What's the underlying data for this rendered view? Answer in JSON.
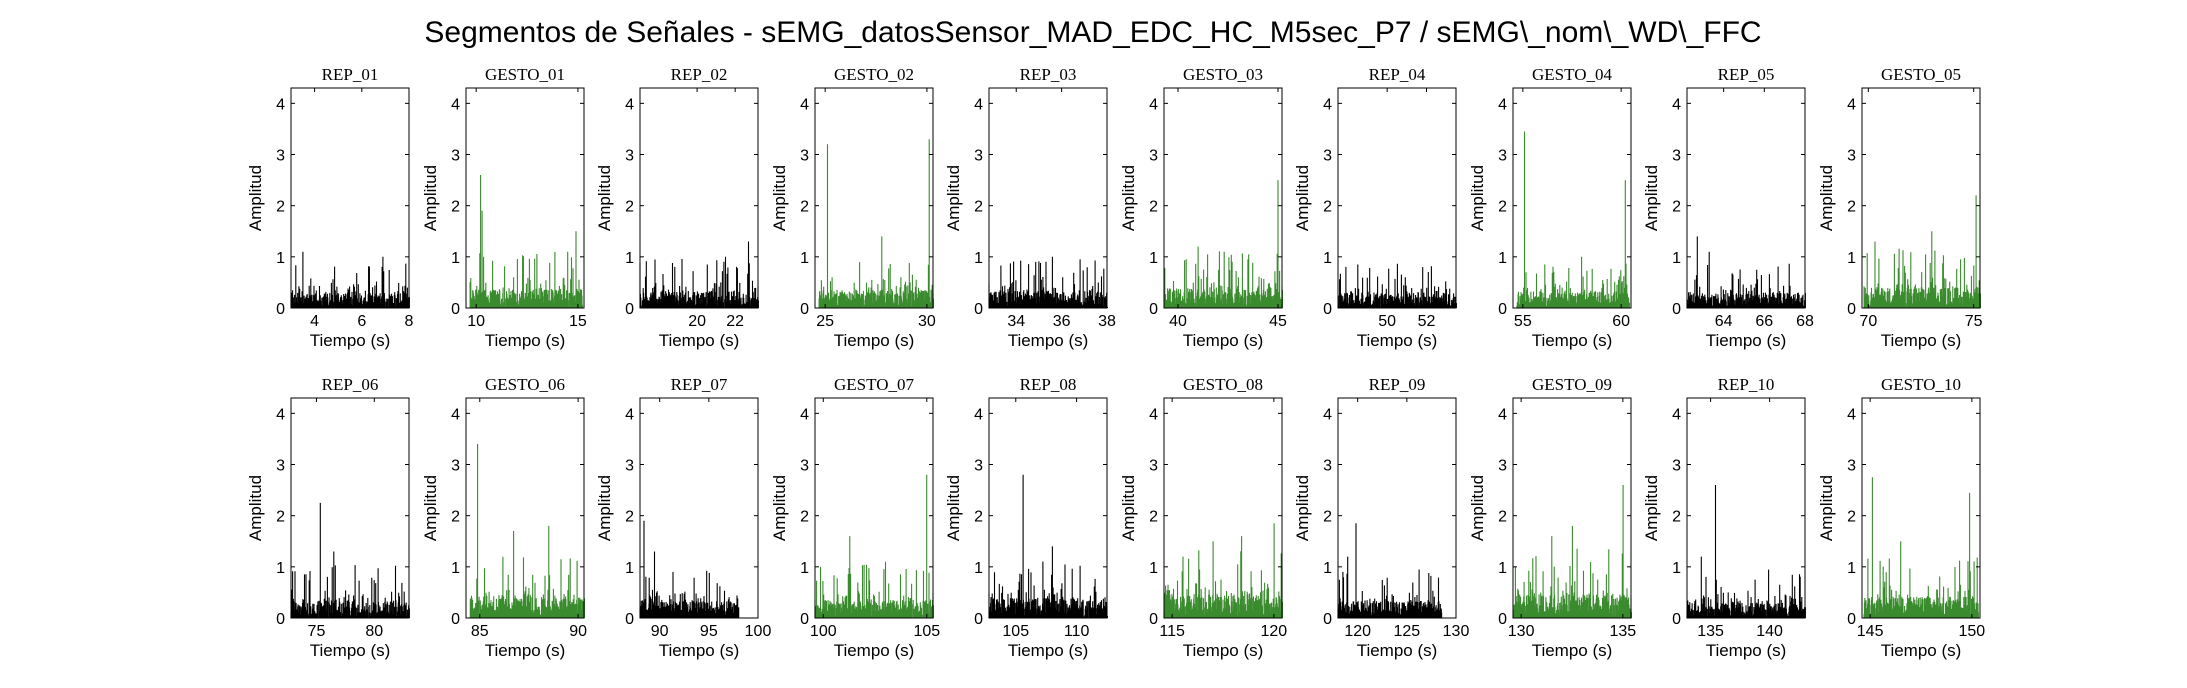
{
  "figure": {
    "title": "Segmentos de Señales - sEMG_datosSensor_MAD_EDC_HC_M5sec_P7 / sEMG\\_nom\\_WD\\_FFC",
    "colors": {
      "rep": "#000000",
      "gesto": "#3a8a2e",
      "axes": "#000000",
      "background": "#ffffff"
    }
  },
  "chart_data": [
    {
      "type": "line",
      "title": "REP_01",
      "xlabel": "Tiempo (s)",
      "ylabel": "Amplitud",
      "color": "#000000",
      "xlim": [
        3,
        8
      ],
      "ylim": [
        0,
        4.3
      ],
      "xticks": [
        4,
        6,
        8
      ],
      "yticks": [
        0,
        1,
        2,
        3,
        4
      ],
      "series": [
        {
          "x_start": 3.0,
          "x_end": 8.0,
          "peaks": [
            {
              "x": 3.5,
              "y": 1.1
            },
            {
              "x": 6.9,
              "y": 1.0
            }
          ],
          "typical_max": 0.55
        }
      ]
    },
    {
      "type": "line",
      "title": "GESTO_01",
      "xlabel": "Tiempo (s)",
      "ylabel": "Amplitud",
      "color": "#3a8a2e",
      "xlim": [
        9.5,
        15.3
      ],
      "ylim": [
        0,
        4.3
      ],
      "xticks": [
        10,
        15
      ],
      "yticks": [
        0,
        1,
        2,
        3,
        4
      ],
      "series": [
        {
          "x_start": 9.7,
          "x_end": 15.2,
          "peaks": [
            {
              "x": 10.2,
              "y": 2.6
            },
            {
              "x": 10.3,
              "y": 1.9
            },
            {
              "x": 14.9,
              "y": 1.5
            }
          ],
          "typical_max": 0.7
        }
      ]
    },
    {
      "type": "line",
      "title": "REP_02",
      "xlabel": "Tiempo (s)",
      "ylabel": "Amplitud",
      "color": "#000000",
      "xlim": [
        17,
        23.2
      ],
      "ylim": [
        0,
        4.3
      ],
      "xticks": [
        20,
        22
      ],
      "yticks": [
        0,
        1,
        2,
        3,
        4
      ],
      "series": [
        {
          "x_start": 17.0,
          "x_end": 23.2,
          "peaks": [
            {
              "x": 22.7,
              "y": 1.3
            },
            {
              "x": 21.5,
              "y": 1.0
            }
          ],
          "typical_max": 0.6
        }
      ]
    },
    {
      "type": "line",
      "title": "GESTO_02",
      "xlabel": "Tiempo (s)",
      "ylabel": "Amplitud",
      "color": "#3a8a2e",
      "xlim": [
        24.5,
        30.3
      ],
      "ylim": [
        0,
        4.3
      ],
      "xticks": [
        25,
        30
      ],
      "yticks": [
        0,
        1,
        2,
        3,
        4
      ],
      "series": [
        {
          "x_start": 24.7,
          "x_end": 30.3,
          "peaks": [
            {
              "x": 25.1,
              "y": 3.2
            },
            {
              "x": 30.1,
              "y": 3.3
            },
            {
              "x": 27.8,
              "y": 1.4
            }
          ],
          "typical_max": 0.65
        }
      ]
    },
    {
      "type": "line",
      "title": "REP_03",
      "xlabel": "Tiempo (s)",
      "ylabel": "Amplitud",
      "color": "#000000",
      "xlim": [
        32.8,
        38
      ],
      "ylim": [
        0,
        4.3
      ],
      "xticks": [
        34,
        36,
        38
      ],
      "yticks": [
        0,
        1,
        2,
        3,
        4
      ],
      "series": [
        {
          "x_start": 32.8,
          "x_end": 38.0,
          "peaks": [
            {
              "x": 35.6,
              "y": 1.0
            },
            {
              "x": 36.8,
              "y": 0.95
            }
          ],
          "typical_max": 0.6
        }
      ]
    },
    {
      "type": "line",
      "title": "GESTO_03",
      "xlabel": "Tiempo (s)",
      "ylabel": "Amplitud",
      "color": "#3a8a2e",
      "xlim": [
        39.3,
        45.2
      ],
      "ylim": [
        0,
        4.3
      ],
      "xticks": [
        40,
        45
      ],
      "yticks": [
        0,
        1,
        2,
        3,
        4
      ],
      "series": [
        {
          "x_start": 39.3,
          "x_end": 45.2,
          "peaks": [
            {
              "x": 45.0,
              "y": 2.5
            },
            {
              "x": 41.0,
              "y": 1.2
            }
          ],
          "typical_max": 0.7
        }
      ]
    },
    {
      "type": "line",
      "title": "REP_04",
      "xlabel": "Tiempo (s)",
      "ylabel": "Amplitud",
      "color": "#000000",
      "xlim": [
        47.5,
        53.5
      ],
      "ylim": [
        0,
        4.3
      ],
      "xticks": [
        50,
        52
      ],
      "yticks": [
        0,
        1,
        2,
        3,
        4
      ],
      "series": [
        {
          "x_start": 47.5,
          "x_end": 53.5,
          "peaks": [
            {
              "x": 48.5,
              "y": 0.85
            },
            {
              "x": 51.8,
              "y": 0.8
            }
          ],
          "typical_max": 0.55
        }
      ]
    },
    {
      "type": "line",
      "title": "GESTO_04",
      "xlabel": "Tiempo (s)",
      "ylabel": "Amplitud",
      "color": "#3a8a2e",
      "xlim": [
        54.5,
        60.5
      ],
      "ylim": [
        0,
        4.3
      ],
      "xticks": [
        55,
        60
      ],
      "yticks": [
        0,
        1,
        2,
        3,
        4
      ],
      "series": [
        {
          "x_start": 54.7,
          "x_end": 60.4,
          "peaks": [
            {
              "x": 55.1,
              "y": 3.45
            },
            {
              "x": 60.2,
              "y": 2.5
            },
            {
              "x": 58.0,
              "y": 1.0
            }
          ],
          "typical_max": 0.6
        }
      ]
    },
    {
      "type": "line",
      "title": "REP_05",
      "xlabel": "Tiempo (s)",
      "ylabel": "Amplitud",
      "color": "#000000",
      "xlim": [
        62.2,
        68
      ],
      "ylim": [
        0,
        4.3
      ],
      "xticks": [
        64,
        66,
        68
      ],
      "yticks": [
        0,
        1,
        2,
        3,
        4
      ],
      "series": [
        {
          "x_start": 62.2,
          "x_end": 68.0,
          "peaks": [
            {
              "x": 62.7,
              "y": 1.4
            },
            {
              "x": 63.3,
              "y": 1.1
            }
          ],
          "typical_max": 0.55
        }
      ]
    },
    {
      "type": "line",
      "title": "GESTO_05",
      "xlabel": "Tiempo (s)",
      "ylabel": "Amplitud",
      "color": "#3a8a2e",
      "xlim": [
        69.7,
        75.3
      ],
      "ylim": [
        0,
        4.3
      ],
      "xticks": [
        70,
        75
      ],
      "yticks": [
        0,
        1,
        2,
        3,
        4
      ],
      "series": [
        {
          "x_start": 69.8,
          "x_end": 75.3,
          "peaks": [
            {
              "x": 75.1,
              "y": 2.2
            },
            {
              "x": 73.0,
              "y": 1.5
            },
            {
              "x": 70.3,
              "y": 1.3
            }
          ],
          "typical_max": 0.75
        }
      ]
    },
    {
      "type": "line",
      "title": "REP_06",
      "xlabel": "Tiempo (s)",
      "ylabel": "Amplitud",
      "color": "#000000",
      "xlim": [
        72.8,
        83
      ],
      "ylim": [
        0,
        4.3
      ],
      "xticks": [
        75,
        80
      ],
      "yticks": [
        0,
        1,
        2,
        3,
        4
      ],
      "series": [
        {
          "x_start": 72.8,
          "x_end": 83.0,
          "peaks": [
            {
              "x": 75.3,
              "y": 2.25
            },
            {
              "x": 76.5,
              "y": 1.3
            }
          ],
          "typical_max": 0.65
        }
      ]
    },
    {
      "type": "line",
      "title": "GESTO_06",
      "xlabel": "Tiempo (s)",
      "ylabel": "Amplitud",
      "color": "#3a8a2e",
      "xlim": [
        84.3,
        90.3
      ],
      "ylim": [
        0,
        4.3
      ],
      "xticks": [
        85,
        90
      ],
      "yticks": [
        0,
        1,
        2,
        3,
        4
      ],
      "series": [
        {
          "x_start": 84.5,
          "x_end": 90.3,
          "peaks": [
            {
              "x": 84.9,
              "y": 3.4
            },
            {
              "x": 88.5,
              "y": 1.8
            },
            {
              "x": 86.7,
              "y": 1.7
            }
          ],
          "typical_max": 0.75
        }
      ]
    },
    {
      "type": "line",
      "title": "REP_07",
      "xlabel": "Tiempo (s)",
      "ylabel": "Amplitud",
      "color": "#000000",
      "xlim": [
        88,
        100
      ],
      "ylim": [
        0,
        4.3
      ],
      "xticks": [
        90,
        95,
        100
      ],
      "yticks": [
        0,
        1,
        2,
        3,
        4
      ],
      "series": [
        {
          "x_start": 88.0,
          "x_end": 98.0,
          "peaks": [
            {
              "x": 88.4,
              "y": 1.9
            },
            {
              "x": 89.5,
              "y": 1.3
            }
          ],
          "typical_max": 0.6
        }
      ]
    },
    {
      "type": "line",
      "title": "GESTO_07",
      "xlabel": "Tiempo (s)",
      "ylabel": "Amplitud",
      "color": "#3a8a2e",
      "xlim": [
        99.6,
        105.3
      ],
      "ylim": [
        0,
        4.3
      ],
      "xticks": [
        100,
        105
      ],
      "yticks": [
        0,
        1,
        2,
        3,
        4
      ],
      "series": [
        {
          "x_start": 99.6,
          "x_end": 105.3,
          "peaks": [
            {
              "x": 105.0,
              "y": 2.8
            },
            {
              "x": 101.3,
              "y": 1.6
            },
            {
              "x": 103.0,
              "y": 1.1
            }
          ],
          "typical_max": 0.65
        }
      ]
    },
    {
      "type": "line",
      "title": "REP_08",
      "xlabel": "Tiempo (s)",
      "ylabel": "Amplitud",
      "color": "#000000",
      "xlim": [
        102.8,
        112.5
      ],
      "ylim": [
        0,
        4.3
      ],
      "xticks": [
        105,
        110
      ],
      "yticks": [
        0,
        1,
        2,
        3,
        4
      ],
      "series": [
        {
          "x_start": 102.8,
          "x_end": 112.5,
          "peaks": [
            {
              "x": 105.6,
              "y": 2.8
            },
            {
              "x": 108.0,
              "y": 1.4
            }
          ],
          "typical_max": 0.75
        }
      ]
    },
    {
      "type": "line",
      "title": "GESTO_08",
      "xlabel": "Tiempo (s)",
      "ylabel": "Amplitud",
      "color": "#3a8a2e",
      "xlim": [
        114.6,
        120.4
      ],
      "ylim": [
        0,
        4.3
      ],
      "xticks": [
        115,
        120
      ],
      "yticks": [
        0,
        1,
        2,
        3,
        4
      ],
      "series": [
        {
          "x_start": 114.6,
          "x_end": 120.4,
          "peaks": [
            {
              "x": 120.0,
              "y": 1.85
            },
            {
              "x": 117.0,
              "y": 1.5
            },
            {
              "x": 118.4,
              "y": 1.6
            }
          ],
          "typical_max": 0.85
        }
      ]
    },
    {
      "type": "line",
      "title": "REP_09",
      "xlabel": "Tiempo (s)",
      "ylabel": "Amplitud",
      "color": "#000000",
      "xlim": [
        118,
        130
      ],
      "ylim": [
        0,
        4.3
      ],
      "xticks": [
        120,
        125,
        130
      ],
      "yticks": [
        0,
        1,
        2,
        3,
        4
      ],
      "series": [
        {
          "x_start": 118.0,
          "x_end": 128.5,
          "peaks": [
            {
              "x": 119.8,
              "y": 1.85
            },
            {
              "x": 119.0,
              "y": 1.2
            }
          ],
          "typical_max": 0.6
        }
      ]
    },
    {
      "type": "line",
      "title": "GESTO_09",
      "xlabel": "Tiempo (s)",
      "ylabel": "Amplitud",
      "color": "#3a8a2e",
      "xlim": [
        129.6,
        135.4
      ],
      "ylim": [
        0,
        4.3
      ],
      "xticks": [
        130,
        135
      ],
      "yticks": [
        0,
        1,
        2,
        3,
        4
      ],
      "series": [
        {
          "x_start": 129.6,
          "x_end": 135.4,
          "peaks": [
            {
              "x": 135.0,
              "y": 2.6
            },
            {
              "x": 132.5,
              "y": 1.8
            },
            {
              "x": 131.5,
              "y": 1.6
            }
          ],
          "typical_max": 0.85
        }
      ]
    },
    {
      "type": "line",
      "title": "REP_10",
      "xlabel": "Tiempo (s)",
      "ylabel": "Amplitud",
      "color": "#000000",
      "xlim": [
        133,
        143
      ],
      "ylim": [
        0,
        4.3
      ],
      "xticks": [
        135,
        140
      ],
      "yticks": [
        0,
        1,
        2,
        3,
        4
      ],
      "series": [
        {
          "x_start": 133.0,
          "x_end": 143.0,
          "peaks": [
            {
              "x": 135.4,
              "y": 2.6
            },
            {
              "x": 134.2,
              "y": 1.2
            }
          ],
          "typical_max": 0.6
        }
      ]
    },
    {
      "type": "line",
      "title": "GESTO_10",
      "xlabel": "Tiempo (s)",
      "ylabel": "Amplitud",
      "color": "#3a8a2e",
      "xlim": [
        144.6,
        150.4
      ],
      "ylim": [
        0,
        4.3
      ],
      "xticks": [
        145,
        150
      ],
      "yticks": [
        0,
        1,
        2,
        3,
        4
      ],
      "series": [
        {
          "x_start": 144.7,
          "x_end": 150.3,
          "peaks": [
            {
              "x": 145.1,
              "y": 2.75
            },
            {
              "x": 149.9,
              "y": 2.45
            },
            {
              "x": 146.5,
              "y": 1.5
            }
          ],
          "typical_max": 0.75
        }
      ]
    }
  ]
}
